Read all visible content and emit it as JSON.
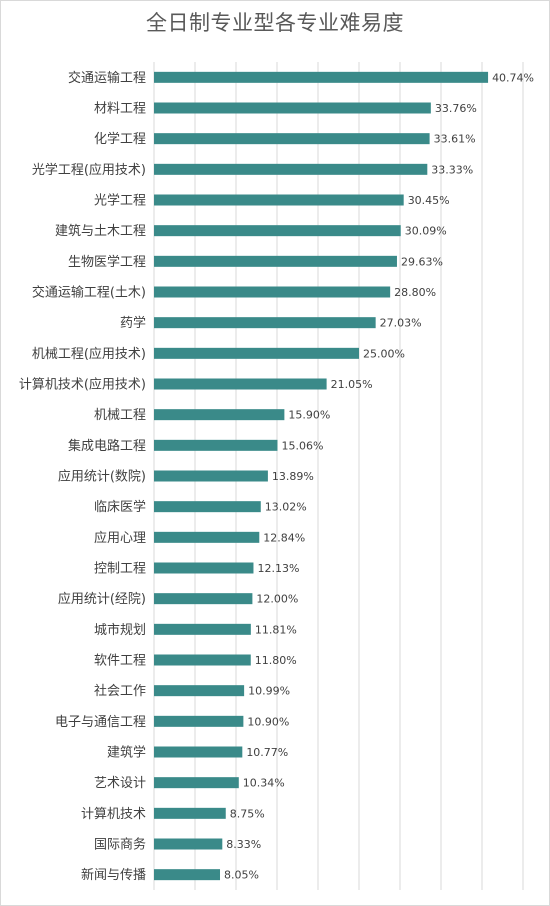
{
  "chart_data": {
    "type": "bar",
    "orientation": "horizontal",
    "title": "全日制专业型各专业难易度",
    "xlabel": "",
    "ylabel": "",
    "xlim": [
      0,
      45
    ],
    "grid": true,
    "bar_color": "#3a8a89",
    "categories": [
      "交通运输工程",
      "材料工程",
      "化学工程",
      "光学工程(应用技术)",
      "光学工程",
      "建筑与土木工程",
      "生物医学工程",
      "交通运输工程(土木)",
      "药学",
      "机械工程(应用技术)",
      "计算机技术(应用技术)",
      "机械工程",
      "集成电路工程",
      "应用统计(数院)",
      "临床医学",
      "应用心理",
      "控制工程",
      "应用统计(经院)",
      "城市规划",
      "软件工程",
      "社会工作",
      "电子与通信工程",
      "建筑学",
      "艺术设计",
      "计算机技术",
      "国际商务",
      "新闻与传播"
    ],
    "values": [
      40.74,
      33.76,
      33.61,
      33.33,
      30.45,
      30.09,
      29.63,
      28.8,
      27.03,
      25.0,
      21.05,
      15.9,
      15.06,
      13.89,
      13.02,
      12.84,
      12.13,
      12.0,
      11.81,
      11.8,
      10.99,
      10.9,
      10.77,
      10.34,
      8.75,
      8.33,
      8.05
    ],
    "value_labels": [
      "40.74%",
      "33.76%",
      "33.61%",
      "33.33%",
      "30.45%",
      "30.09%",
      "29.63%",
      "28.80%",
      "27.03%",
      "25.00%",
      "21.05%",
      "15.90%",
      "15.06%",
      "13.89%",
      "13.02%",
      "12.84%",
      "12.13%",
      "12.00%",
      "11.81%",
      "11.80%",
      "10.99%",
      "10.90%",
      "10.77%",
      "10.34%",
      "8.75%",
      "8.33%",
      "8.05%"
    ]
  }
}
